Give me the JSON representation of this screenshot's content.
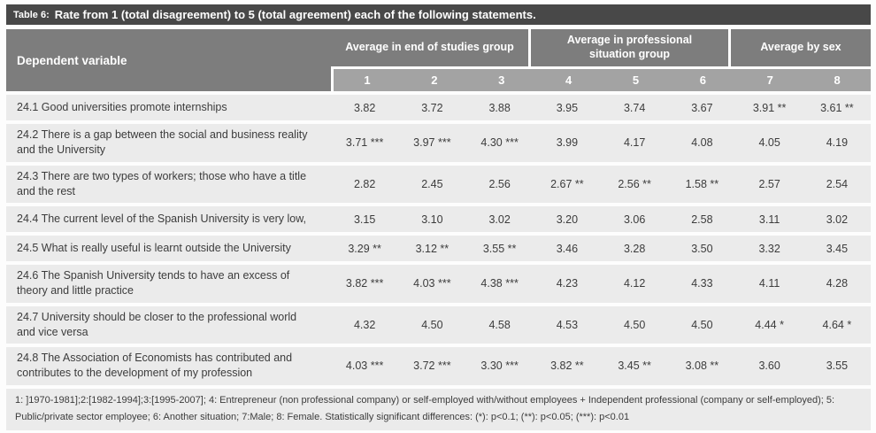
{
  "title": {
    "prefix": "Table 6:",
    "text": "Rate from 1 (total disagreement) to 5 (total agreement) each of the following statements."
  },
  "table": {
    "corner_label": "Dependent variable",
    "groups": [
      {
        "label": "Average in end of studies group",
        "cols": 3
      },
      {
        "label": "Average in professional situation group",
        "cols": 3
      },
      {
        "label": "Average by sex",
        "cols": 2
      }
    ],
    "column_numbers": [
      "1",
      "2",
      "3",
      "4",
      "5",
      "6",
      "7",
      "8"
    ],
    "rows": [
      {
        "label": "24.1 Good universities promote internships",
        "values": [
          "3.82",
          "3.72",
          "3.88",
          "3.95",
          "3.74",
          "3.67",
          "3.91 **",
          "3.61 **"
        ]
      },
      {
        "label": "24.2 There is a gap between the social and business reality and the University",
        "values": [
          "3.71 ***",
          "3.97 ***",
          "4.30 ***",
          "3.99",
          "4.17",
          "4.08",
          "4.05",
          "4.19"
        ]
      },
      {
        "label": "24.3 There are two types of workers; those who have a title and the rest",
        "values": [
          "2.82",
          "2.45",
          "2.56",
          "2.67 **",
          "2.56 **",
          "1.58 **",
          "2.57",
          "2.54"
        ]
      },
      {
        "label": "24.4 The current level of the Spanish University is very low,",
        "values": [
          "3.15",
          "3.10",
          "3.02",
          "3.20",
          "3.06",
          "2.58",
          "3.11",
          "3.02"
        ]
      },
      {
        "label": "24.5 What is really useful is learnt outside the University",
        "values": [
          "3.29 **",
          "3.12 **",
          "3.55 **",
          "3.46",
          "3.28",
          "3.50",
          "3.32",
          "3.45"
        ]
      },
      {
        "label": "24.6 The Spanish University tends to have an excess of theory and little practice",
        "values": [
          "3.82 ***",
          "4.03 ***",
          "4.38 ***",
          "4.23",
          "4.12",
          "4.33",
          "4.11",
          "4.28"
        ]
      },
      {
        "label": "24.7 University should be closer to the professional world and vice versa",
        "values": [
          "4.32",
          "4.50",
          "4.58",
          "4.53",
          "4.50",
          "4.50",
          "4.44 *",
          "4.64 *"
        ]
      },
      {
        "label": "24.8 The Association of Economists has contributed and contributes to the development of my profession",
        "values": [
          "4.03 ***",
          "3.72 ***",
          "3.30 ***",
          "3.82 **",
          "3.45 **",
          "3.08 **",
          "3.60",
          "3.55"
        ]
      }
    ]
  },
  "footnote": {
    "line1": "1: ]1970-1981];2:[1982-1994];3:[1995-2007]; 4: Entrepreneur (non professional company) or self-employed with/without employees  + Independent professional (company or self-employed); 5:",
    "line2": "Public/private sector employee; 6: Another situation; 7:Male; 8: Female. Statistically significant differences: (*): p<0.1;   (**): p<0.05;   (***): p<0.01"
  },
  "colors": {
    "title_bar": "#484848",
    "header": "#7d7d7d",
    "subheader": "#a3a3a3",
    "row_bg": "#ebebeb",
    "text": "#3c3c3c",
    "white": "#ffffff"
  }
}
